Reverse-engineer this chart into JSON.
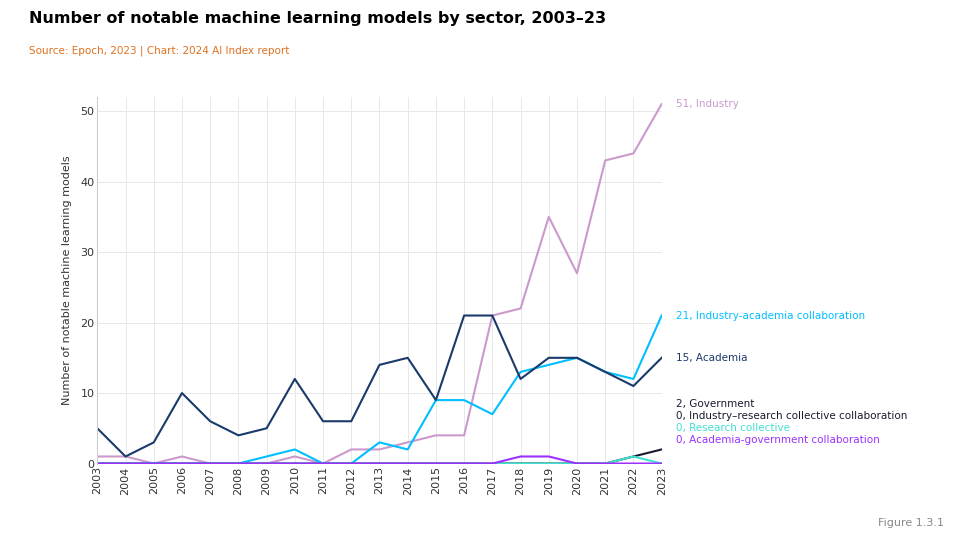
{
  "title": "Number of notable machine learning models by sector, 2003–23",
  "subtitle": "Source: Epoch, 2023 | Chart: 2024 AI Index report",
  "ylabel": "Number of notable machine learning models",
  "years": [
    2003,
    2004,
    2005,
    2006,
    2007,
    2008,
    2009,
    2010,
    2011,
    2012,
    2013,
    2014,
    2015,
    2016,
    2017,
    2018,
    2019,
    2020,
    2021,
    2022,
    2023
  ],
  "series": [
    {
      "name": "Industry",
      "label": "51, Industry",
      "color": "#cc99cc",
      "values": [
        1,
        1,
        0,
        1,
        0,
        0,
        0,
        1,
        0,
        2,
        2,
        3,
        4,
        4,
        21,
        22,
        35,
        27,
        43,
        44,
        51
      ]
    },
    {
      "name": "Industry-academia collaboration",
      "label": "21, Industry-academia collaboration",
      "color": "#00bfff",
      "values": [
        0,
        0,
        0,
        0,
        0,
        0,
        1,
        2,
        0,
        0,
        3,
        2,
        9,
        9,
        7,
        13,
        14,
        15,
        13,
        12,
        21
      ]
    },
    {
      "name": "Academia",
      "label": "15, Academia",
      "color": "#1a3a6b",
      "values": [
        5,
        1,
        3,
        10,
        6,
        4,
        5,
        12,
        6,
        6,
        14,
        15,
        9,
        21,
        21,
        12,
        15,
        15,
        13,
        11,
        15
      ]
    },
    {
      "name": "Government",
      "label": "2, Government",
      "color": "#1a1a2e",
      "values": [
        0,
        0,
        0,
        0,
        0,
        0,
        0,
        0,
        0,
        0,
        0,
        0,
        0,
        0,
        0,
        0,
        0,
        0,
        0,
        1,
        2
      ]
    },
    {
      "name": "Industry–research collective collaboration",
      "label": "0, Industry–research collective collaboration",
      "color": "#1a1a2e",
      "values": [
        0,
        0,
        0,
        0,
        0,
        0,
        0,
        0,
        0,
        0,
        0,
        0,
        0,
        0,
        0,
        0,
        0,
        0,
        0,
        0,
        0
      ]
    },
    {
      "name": "Research collective",
      "label": "0, Research collective",
      "color": "#40e0d0",
      "values": [
        0,
        0,
        0,
        0,
        0,
        0,
        0,
        0,
        0,
        0,
        0,
        0,
        0,
        0,
        0,
        0,
        0,
        0,
        0,
        1,
        0
      ]
    },
    {
      "name": "Academia-government collaboration",
      "label": "0, Academia-government collaboration",
      "color": "#9b30ff",
      "values": [
        0,
        0,
        0,
        0,
        0,
        0,
        0,
        0,
        0,
        0,
        0,
        0,
        0,
        0,
        0,
        1,
        1,
        0,
        0,
        0,
        0
      ]
    }
  ],
  "ylim": [
    0,
    52
  ],
  "yticks": [
    0,
    10,
    20,
    30,
    40,
    50
  ],
  "figure_label": "Figure 1.3.1",
  "bg_color": "#ffffff",
  "grid_color": "#e8e8e8",
  "title_color": "#000000",
  "subtitle_color": "#555555",
  "label_y_positions": {
    "Industry": 51,
    "Industry-academia collaboration": 21,
    "Academia": 15,
    "Government–research collective collaboration": 8.5,
    "Industry–research collective collaboration": 6.8,
    "Research collective": 5.1,
    "Academia-government collaboration": 3.4
  }
}
